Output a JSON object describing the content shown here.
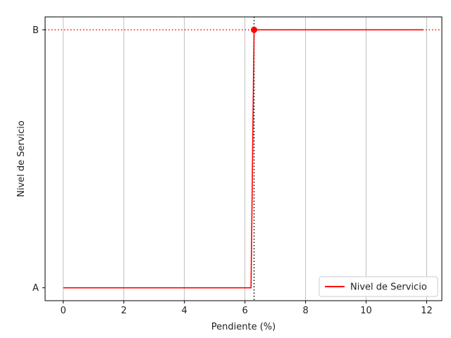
{
  "chart_data": {
    "type": "line",
    "title": "",
    "xlabel": "Pendiente (%)",
    "ylabel": "Nivel de Servicio",
    "xlim": [
      -0.6,
      12.5
    ],
    "ylim": [
      -0.05,
      1.05
    ],
    "xticks": [
      0,
      2,
      4,
      6,
      8,
      10,
      12
    ],
    "yticks": [
      {
        "value": 0,
        "label": "A"
      },
      {
        "value": 1,
        "label": "B"
      }
    ],
    "grid": "vertical-only",
    "series": [
      {
        "name": "Nivel de Servicio",
        "color": "#ff0000",
        "x": [
          0,
          6.2,
          6.3,
          11.9
        ],
        "y": [
          0,
          0,
          1,
          1
        ]
      }
    ],
    "marker_point": {
      "x": 6.3,
      "y": 1,
      "color": "#ff0000"
    },
    "reference_lines": [
      {
        "orientation": "vertical",
        "value": 6.3,
        "color": "#000000",
        "style": "dotted"
      },
      {
        "orientation": "horizontal",
        "value": 1,
        "color": "#ff0000",
        "style": "dotted"
      }
    ],
    "legend": {
      "position": "bottom-right",
      "label": "Nivel de Servicio"
    }
  }
}
